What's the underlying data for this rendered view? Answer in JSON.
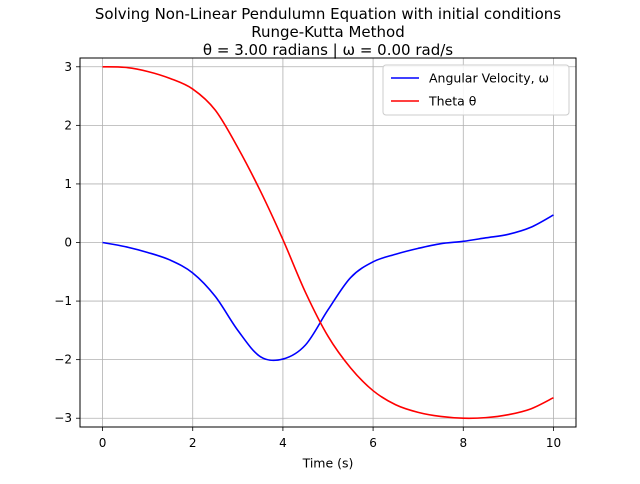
{
  "chart_data": {
    "type": "line",
    "title_lines": [
      "Solving Non-Linear Pendulumn Equation with initial conditions",
      "Runge-Kutta Method",
      "θ = 3.00 radians | ω = 0.00 rad/s"
    ],
    "xlabel": "Time (s)",
    "ylabel": "",
    "xlim": [
      -0.5,
      10.5
    ],
    "ylim": [
      -3.15,
      3.15
    ],
    "x_ticks": [
      0,
      2,
      4,
      6,
      8,
      10
    ],
    "x_tick_labels": [
      "0",
      "2",
      "4",
      "6",
      "8",
      "10"
    ],
    "y_ticks": [
      -3,
      -2,
      -1,
      0,
      1,
      2,
      3
    ],
    "y_tick_labels": [
      "−3",
      "−2",
      "−1",
      "0",
      "1",
      "2",
      "3"
    ],
    "grid": true,
    "legend_position": "top-right",
    "x": [
      0,
      0.5,
      1,
      1.5,
      2,
      2.5,
      3,
      3.5,
      4,
      4.5,
      5,
      5.5,
      6,
      6.5,
      7,
      7.5,
      8,
      8.5,
      9,
      9.5,
      10
    ],
    "series": [
      {
        "name": "Angular Velocity, ω",
        "color": "#0000ff",
        "values": [
          0.0,
          -0.07,
          -0.17,
          -0.3,
          -0.52,
          -0.92,
          -1.5,
          -1.95,
          -1.99,
          -1.75,
          -1.15,
          -0.6,
          -0.33,
          -0.2,
          -0.1,
          -0.02,
          0.02,
          0.08,
          0.14,
          0.26,
          0.47
        ]
      },
      {
        "name": "Theta θ",
        "color": "#ff0000",
        "values": [
          3.0,
          2.99,
          2.92,
          2.8,
          2.62,
          2.26,
          1.62,
          0.88,
          0.05,
          -0.85,
          -1.6,
          -2.14,
          -2.53,
          -2.77,
          -2.9,
          -2.97,
          -3.0,
          -2.99,
          -2.94,
          -2.84,
          -2.65
        ]
      }
    ]
  }
}
